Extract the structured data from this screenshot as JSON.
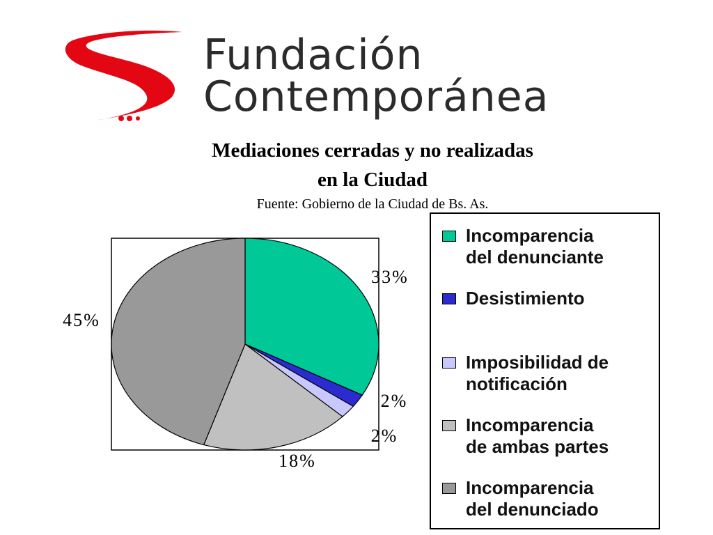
{
  "brand": {
    "line1": "Fundación",
    "line2": "Contemporánea"
  },
  "chart_data": {
    "type": "pie",
    "title": "Mediaciones cerradas y no realizadas",
    "title_line2": "en la Ciudad",
    "subtitle": "Fuente: Gobierno de la Ciudad de Bs. As.",
    "legend_position": "right",
    "slices": [
      {
        "label": "Incomparencia del denunciante",
        "legend_lines": [
          "Incomparencia",
          "del denunciante"
        ],
        "value": 33,
        "data_label": "33%",
        "color": "#00c896"
      },
      {
        "label": "Desistimiento",
        "legend_lines": [
          "Desistimiento"
        ],
        "value": 2,
        "data_label": "2%",
        "color": "#2b2bd0"
      },
      {
        "label": "Imposibilidad de notificación",
        "legend_lines": [
          "Imposibilidad de",
          "notificación"
        ],
        "value": 2,
        "data_label": "2%",
        "color": "#c8c8ff"
      },
      {
        "label": "Incomparencia de ambas partes",
        "legend_lines": [
          "Incomparencia",
          "de ambas partes"
        ],
        "value": 18,
        "data_label": "18%",
        "color": "#c0c0c0"
      },
      {
        "label": "Incomparencia del denunciado",
        "legend_lines": [
          "Incomparencia",
          "del denunciado"
        ],
        "value": 45,
        "data_label": "45%",
        "color": "#999999"
      }
    ]
  }
}
